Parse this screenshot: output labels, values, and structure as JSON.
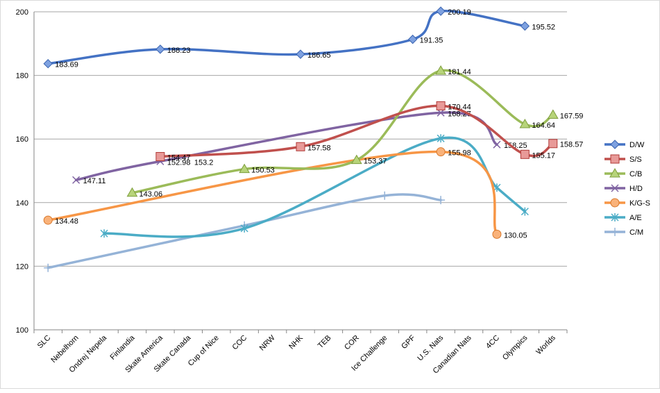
{
  "chart_data": {
    "type": "line",
    "title": "",
    "xlabel": "",
    "ylabel": "",
    "ylim": [
      100,
      200
    ],
    "yticks": [
      100,
      120,
      140,
      160,
      180,
      200
    ],
    "grid": "horizontal",
    "legend_position": "right",
    "categories": [
      "SLC",
      "Nebelhorn",
      "Ondrej Nepela",
      "Finlandia",
      "Skate America",
      "Skate Canada",
      "Cup of Nice",
      "COC",
      "NRW",
      "NHK",
      "TEB",
      "COR",
      "Ice Challenge",
      "GPF",
      "U.S. Nats",
      "Canadian Nats",
      "4CC",
      "Olympics",
      "Worlds"
    ],
    "series": [
      {
        "name": "D/W",
        "color": "#4472c4",
        "marker": "diamond",
        "labeled": true,
        "points": [
          [
            "SLC",
            183.69
          ],
          [
            "Skate America",
            188.23
          ],
          [
            "NHK",
            186.65
          ],
          [
            "GPF",
            191.35
          ],
          [
            "U.S. Nats",
            200.19
          ],
          [
            "Olympics",
            195.52
          ]
        ],
        "labels": [
          "183.69",
          "188.23",
          "186.65",
          "191.35",
          "200.19",
          "195.52"
        ]
      },
      {
        "name": "S/S",
        "color": "#c0504d",
        "marker": "square",
        "labeled": true,
        "points": [
          [
            "Skate America",
            154.47
          ],
          [
            "NHK",
            157.58
          ],
          [
            "U.S. Nats",
            170.44
          ],
          [
            "Olympics",
            155.17
          ],
          [
            "Worlds",
            158.57
          ]
        ],
        "labels": [
          "154.47",
          "157.58",
          "170.44",
          "155.17",
          "158.57"
        ]
      },
      {
        "name": "C/B",
        "color": "#9bbb59",
        "marker": "triangle",
        "labeled": true,
        "points": [
          [
            "Finlandia",
            143.06
          ],
          [
            "COC",
            150.53
          ],
          [
            "COR",
            153.37
          ],
          [
            "U.S. Nats",
            181.44
          ],
          [
            "Olympics",
            164.64
          ],
          [
            "Worlds",
            167.59
          ]
        ],
        "labels": [
          "143.06",
          "150.53",
          "153.37",
          "181.44",
          "164.64",
          "167.59"
        ]
      },
      {
        "name": "H/D",
        "color": "#8064a2",
        "marker": "x",
        "labeled": true,
        "points": [
          [
            "Nebelhorn",
            147.11
          ],
          [
            "Skate America",
            152.98
          ],
          [
            "U.S. Nats",
            168.27
          ],
          [
            "4CC",
            158.25
          ]
        ],
        "labels": [
          "147.11",
          "152.98",
          "168.27",
          "158.25"
        ]
      },
      {
        "name": "K/G-S",
        "color": "#f79646",
        "marker": "circle",
        "labeled": true,
        "points": [
          [
            "SLC",
            134.48
          ],
          [
            "U.S. Nats",
            155.98
          ],
          [
            "4CC",
            130.05
          ]
        ],
        "labels": [
          "134.48",
          "155.98",
          "130.05"
        ]
      },
      {
        "name": "A/E",
        "color": "#4bacc6",
        "marker": "star",
        "labeled": false,
        "points": [
          [
            "Ondrej Nepela",
            130.3
          ],
          [
            "COC",
            131.9
          ],
          [
            "U.S. Nats",
            160.2
          ],
          [
            "4CC",
            144.7
          ],
          [
            "Olympics",
            137.2
          ]
        ]
      },
      {
        "name": "C/M",
        "color": "#95b3d7",
        "marker": "plus",
        "labeled": false,
        "points": [
          [
            "SLC",
            119.5
          ],
          [
            "COC",
            132.8
          ],
          [
            "Ice Challenge",
            142.2
          ],
          [
            "U.S. Nats",
            140.8
          ]
        ]
      }
    ],
    "annotations": [
      {
        "text": "153.2",
        "near": "Skate America",
        "series": "S/S"
      }
    ]
  }
}
